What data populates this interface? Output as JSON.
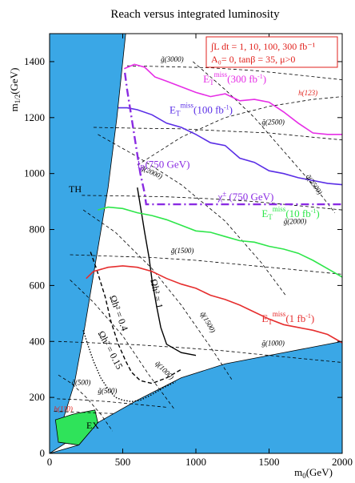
{
  "chart_data": {
    "type": "line",
    "title": "Reach versus integrated luminosity",
    "xlabel": "m0(GeV)",
    "ylabel": "m1/2(GeV)",
    "xlim": [
      0,
      2000
    ],
    "ylim": [
      0,
      1500
    ],
    "x_ticks": [
      "0",
      "500",
      "1000",
      "1500",
      "2000"
    ],
    "y_ticks": [
      "0",
      "200",
      "400",
      "600",
      "800",
      "1000",
      "1200",
      "1400"
    ],
    "legend_box": {
      "line1": "∫L dt = 1, 10, 100, 300 fb⁻¹",
      "line2": "A₀= 0, tanβ = 35, μ>0"
    },
    "regions": [
      {
        "name": "TH",
        "label": "TH",
        "color": "#3aa7e6"
      },
      {
        "name": "EX",
        "label": "EX",
        "color": "#2fe35a"
      }
    ],
    "reach_curves": [
      {
        "name": "ET miss (300 fb-1)",
        "label_main": "E",
        "label_sub": "T",
        "label_sup": "miss",
        "label_tail": "(300 fb",
        "label_exp": "-1",
        "label_close": ")",
        "color": "#e62ee6",
        "x": [
          510,
          580,
          650,
          720,
          800,
          900,
          1000,
          1100,
          1200,
          1300,
          1400,
          1500,
          1600,
          1700,
          1800,
          1900,
          2000
        ],
        "y": [
          1375,
          1390,
          1380,
          1345,
          1330,
          1310,
          1290,
          1275,
          1285,
          1260,
          1265,
          1255,
          1220,
          1180,
          1145,
          1140,
          1140
        ]
      },
      {
        "name": "ET miss (100 fb-1)",
        "label_main": "E",
        "label_sub": "T",
        "label_sup": "miss",
        "label_tail": "(100 fb",
        "label_exp": "-1",
        "label_close": ")",
        "color": "#5a2ee6",
        "x": [
          470,
          530,
          600,
          700,
          800,
          900,
          1000,
          1100,
          1200,
          1300,
          1400,
          1500,
          1600,
          1700,
          1800,
          1900,
          2000
        ],
        "y": [
          1235,
          1235,
          1228,
          1210,
          1180,
          1165,
          1140,
          1110,
          1100,
          1055,
          1040,
          1010,
          1000,
          985,
          975,
          965,
          960
        ]
      },
      {
        "name": "ET miss (10 fb-1)",
        "label_main": "E",
        "label_sub": "T",
        "label_sup": "miss",
        "label_tail": "(10 fb",
        "label_exp": "-1",
        "label_close": ")",
        "color": "#2ee64a",
        "x": [
          330,
          400,
          500,
          600,
          700,
          800,
          900,
          1000,
          1100,
          1200,
          1300,
          1400,
          1500,
          1600,
          1700,
          1800,
          1900,
          2000
        ],
        "y": [
          870,
          880,
          875,
          860,
          850,
          835,
          815,
          795,
          790,
          775,
          760,
          755,
          740,
          730,
          715,
          690,
          660,
          630
        ]
      },
      {
        "name": "ET miss (1 fb-1)",
        "label_main": "E",
        "label_sub": "T",
        "label_sup": "miss",
        "label_tail": "(1 fb",
        "label_exp": "-1",
        "label_close": ")",
        "color": "#e62e2e",
        "x": [
          250,
          300,
          400,
          500,
          600,
          700,
          800,
          900,
          1000,
          1100,
          1200,
          1300,
          1400,
          1500,
          1600,
          1700,
          1800,
          1900,
          2000
        ],
        "y": [
          625,
          650,
          665,
          670,
          665,
          650,
          625,
          605,
          590,
          565,
          550,
          530,
          505,
          480,
          460,
          450,
          440,
          425,
          395
        ]
      }
    ],
    "slepton_chargino_reach": {
      "label_l": "l",
      "label_R": "R",
      "label_l_tail": "(750 GeV)",
      "label_chi": "χ",
      "label_chi_sup": "±",
      "label_chi_tail": " (750 GeV)",
      "color": "#8a2be2",
      "x": [
        515,
        530,
        560,
        590,
        620,
        650,
        660,
        700,
        800,
        1000,
        1200,
        1400,
        1600,
        1800,
        2000
      ],
      "y": [
        1360,
        1300,
        1200,
        1100,
        1000,
        930,
        890,
        890,
        890,
        890,
        890,
        890,
        890,
        890,
        890
      ]
    },
    "relic_density": [
      {
        "name": "Omega h2 = 1",
        "label": "Ωh² = 1",
        "style": "solid",
        "x": [
          600,
          625,
          650,
          680,
          700,
          730,
          760,
          800,
          900,
          1000
        ],
        "y": [
          950,
          870,
          790,
          700,
          620,
          530,
          450,
          390,
          360,
          350
        ]
      },
      {
        "name": "Omega h2 = 0.4",
        "label": "Ωh² = 0.4",
        "style": "dashed",
        "x": [
          280,
          320,
          380,
          420,
          470,
          520,
          560,
          620,
          700,
          800,
          900
        ],
        "y": [
          720,
          660,
          560,
          470,
          390,
          330,
          290,
          260,
          250,
          270,
          300
        ]
      },
      {
        "name": "Omega h2 = 0.15",
        "label": "Ωh² = 0.15",
        "style": "dotted",
        "x": [
          230,
          260,
          300,
          350,
          400,
          450,
          500,
          560,
          620,
          700,
          780,
          860
        ],
        "y": [
          440,
          390,
          330,
          270,
          230,
          200,
          190,
          185,
          190,
          210,
          235,
          255
        ]
      }
    ],
    "mass_contours": [
      {
        "name": "gluino 3000",
        "label": "g̃(3000)",
        "x": [
          530,
          800,
          1100,
          1400,
          1700,
          2000
        ],
        "y": [
          1385,
          1382,
          1378,
          1368,
          1352,
          1335
        ]
      },
      {
        "name": "gluino 2500",
        "label": "g̃(2500)",
        "x": [
          300,
          600,
          900,
          1200,
          1500,
          1800,
          2000
        ],
        "y": [
          1165,
          1162,
          1160,
          1152,
          1145,
          1130,
          1120
        ]
      },
      {
        "name": "gluino 2000",
        "label": "g̃(2000)",
        "x": [
          220,
          500,
          800,
          1100,
          1400,
          1700,
          2000
        ],
        "y": [
          922,
          920,
          917,
          910,
          900,
          885,
          870
        ]
      },
      {
        "name": "gluino 1500",
        "label": "g̃(1500)",
        "x": [
          140,
          400,
          700,
          1000,
          1300,
          1600,
          2000
        ],
        "y": [
          710,
          705,
          700,
          690,
          675,
          660,
          640
        ]
      },
      {
        "name": "gluino 1000",
        "label": "g̃(1000)",
        "x": [
          60,
          300,
          600,
          900,
          1200,
          1500,
          1800,
          2000
        ],
        "y": [
          400,
          395,
          388,
          378,
          366,
          350,
          335,
          325
        ]
      },
      {
        "name": "gluino 500",
        "label": "g̃(500)",
        "x": [
          50,
          200,
          400,
          600,
          800
        ],
        "y": [
          195,
          192,
          185,
          175,
          165
        ]
      },
      {
        "name": "squark 2500",
        "label": "q̃(2500)",
        "x": [
          980,
          1200,
          1400,
          1600,
          1800,
          1950
        ],
        "y": [
          1400,
          1300,
          1200,
          1080,
          960,
          860
        ]
      },
      {
        "name": "squark 2000",
        "label": "q̃(2000)",
        "x": [
          330,
          600,
          900,
          1200,
          1450,
          1620
        ],
        "y": [
          1140,
          1060,
          960,
          830,
          680,
          560
        ]
      },
      {
        "name": "squark 1500",
        "label": "q̃(1500)",
        "x": [
          230,
          450,
          700,
          900,
          1100,
          1250
        ],
        "y": [
          870,
          790,
          660,
          530,
          380,
          260
        ]
      },
      {
        "name": "squark 1000",
        "label": "q̃(1000)",
        "x": [
          140,
          300,
          500,
          680,
          850
        ],
        "y": [
          620,
          540,
          420,
          280,
          160
        ]
      },
      {
        "name": "squark 500",
        "label": "q̃(500)",
        "x": [
          60,
          150,
          250,
          350,
          430
        ],
        "y": [
          280,
          250,
          200,
          140,
          80
        ]
      },
      {
        "name": "higgs 123",
        "label": "h(123)",
        "x": [
          600,
          900,
          1200,
          1500,
          1800,
          2000
        ],
        "y": [
          1030,
          1130,
          1200,
          1240,
          1265,
          1275
        ]
      },
      {
        "name": "higgs 110",
        "label": "h(110)",
        "x": [
          30,
          150,
          300,
          450
        ],
        "y": [
          150,
          148,
          145,
          142
        ]
      }
    ],
    "grid": false,
    "legend_position": "top-right"
  }
}
